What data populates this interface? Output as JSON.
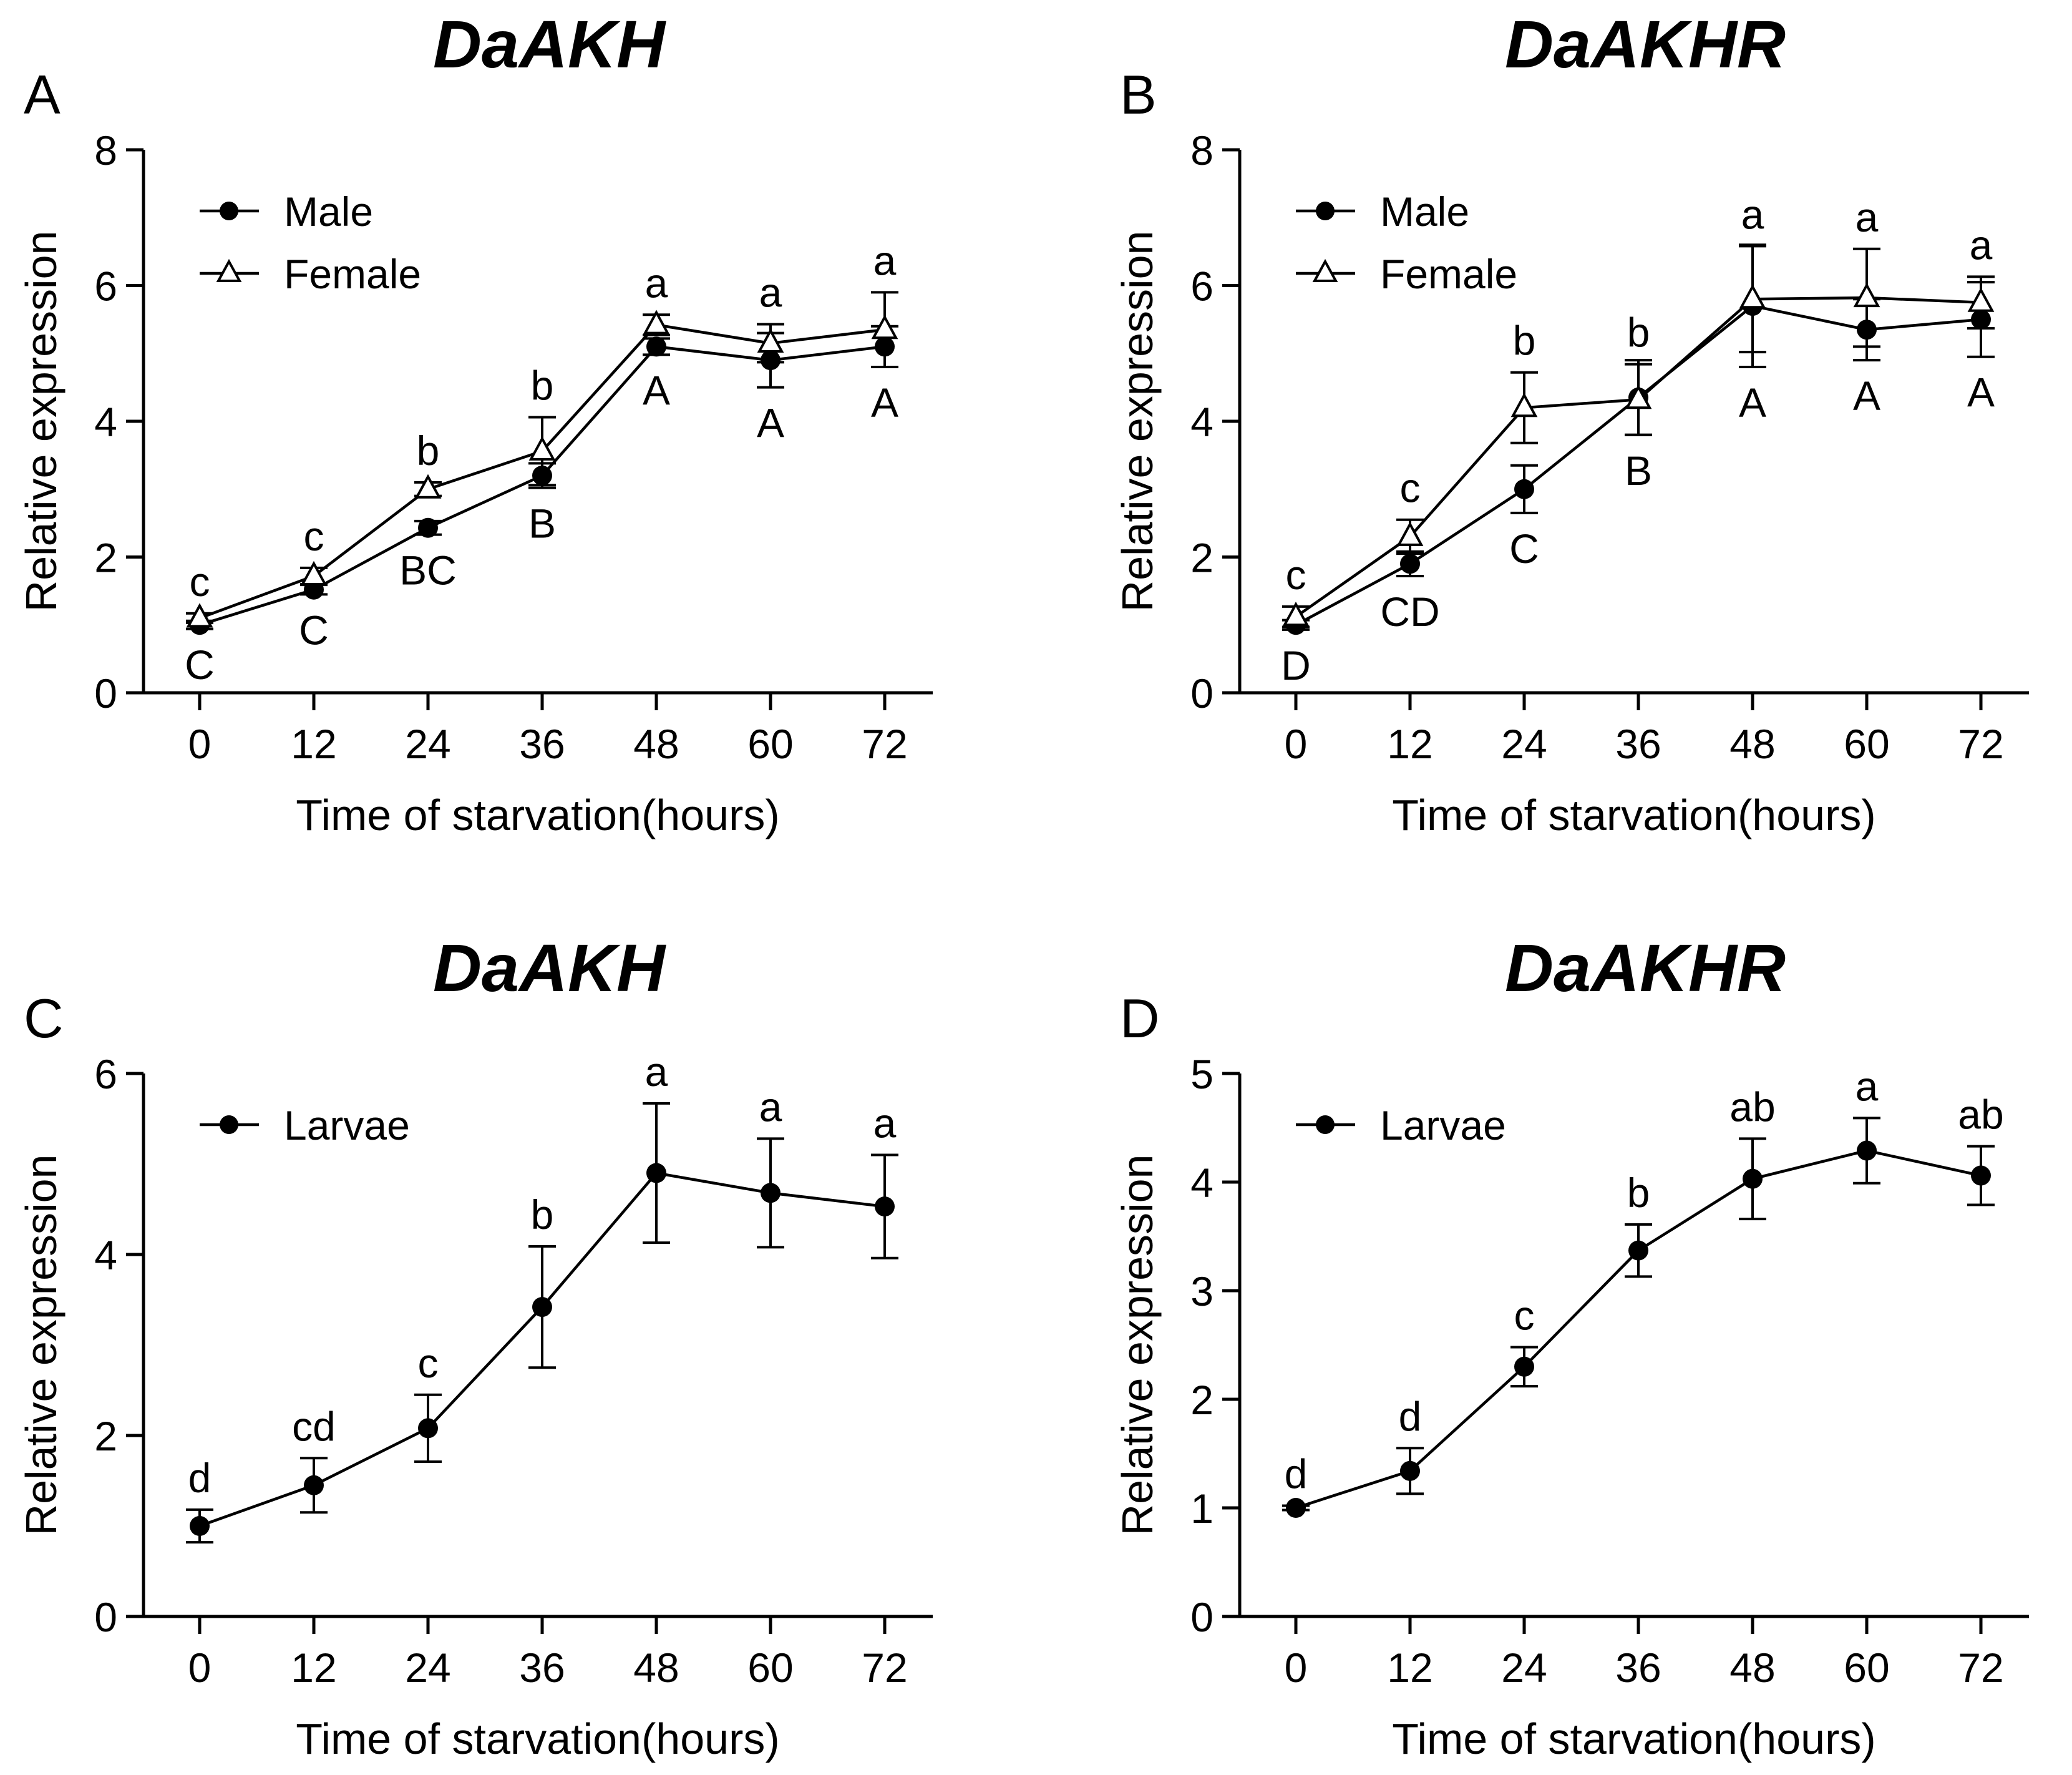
{
  "chart_data": [
    {
      "panel": "A",
      "title": "DaAKH",
      "type": "line",
      "xlabel": "Time of starvation(hours)",
      "ylabel": "Relative expression",
      "x": [
        0,
        12,
        24,
        36,
        48,
        60,
        72
      ],
      "xticks": [
        "0",
        "12",
        "24",
        "36",
        "48",
        "60",
        "72"
      ],
      "ylim": [
        0,
        8
      ],
      "yticks": [
        0,
        2,
        4,
        6,
        8
      ],
      "grid": false,
      "legend_position": "top-left",
      "series": [
        {
          "name": "Male",
          "marker": "filled-circle",
          "values": [
            1.0,
            1.52,
            2.43,
            3.2,
            5.1,
            4.9,
            5.1
          ],
          "errors": [
            0.06,
            0.07,
            0.1,
            0.18,
            0.12,
            0.4,
            0.3
          ],
          "letters": [
            "C",
            "C",
            "BC",
            "B",
            "A",
            "A",
            "A"
          ],
          "letter_position": "below"
        },
        {
          "name": "Female",
          "marker": "open-triangle",
          "values": [
            1.1,
            1.72,
            3.0,
            3.56,
            5.42,
            5.15,
            5.35
          ],
          "errors": [
            0.07,
            0.12,
            0.1,
            0.5,
            0.15,
            0.28,
            0.55
          ],
          "letters": [
            "c",
            "c",
            "b",
            "b",
            "a",
            "a",
            "a"
          ],
          "letter_position": "above"
        }
      ]
    },
    {
      "panel": "B",
      "title": "DaAKHR",
      "type": "line",
      "xlabel": "Time of starvation(hours)",
      "ylabel": "Relative expression",
      "x": [
        0,
        12,
        24,
        36,
        48,
        60,
        72
      ],
      "xticks": [
        "0",
        "12",
        "24",
        "36",
        "48",
        "60",
        "72"
      ],
      "ylim": [
        0,
        8
      ],
      "yticks": [
        0,
        2,
        4,
        6,
        8
      ],
      "grid": false,
      "legend_position": "top-left",
      "series": [
        {
          "name": "Male",
          "marker": "filled-circle",
          "values": [
            1.0,
            1.9,
            3.0,
            4.35,
            5.7,
            5.35,
            5.5
          ],
          "errors": [
            0.07,
            0.18,
            0.35,
            0.55,
            0.9,
            0.45,
            0.55
          ],
          "letters": [
            "D",
            "CD",
            "C",
            "B",
            "A",
            "A",
            "A"
          ],
          "letter_position": "below"
        },
        {
          "name": "Female",
          "marker": "open-triangle",
          "values": [
            1.12,
            2.3,
            4.2,
            4.32,
            5.8,
            5.82,
            5.75
          ],
          "errors": [
            0.15,
            0.25,
            0.52,
            0.52,
            0.78,
            0.72,
            0.38
          ],
          "letters": [
            "c",
            "c",
            "b",
            "b",
            "a",
            "a",
            "a"
          ],
          "letter_position": "above"
        }
      ]
    },
    {
      "panel": "C",
      "title": "DaAKH",
      "type": "line",
      "xlabel": "Time of starvation(hours)",
      "ylabel": "Relative expression",
      "x": [
        0,
        12,
        24,
        36,
        48,
        60,
        72
      ],
      "xticks": [
        "0",
        "12",
        "24",
        "36",
        "48",
        "60",
        "72"
      ],
      "ylim": [
        0,
        6
      ],
      "yticks": [
        0,
        2,
        4,
        6
      ],
      "grid": false,
      "legend_position": "top-left",
      "series": [
        {
          "name": "Larvae",
          "marker": "filled-circle",
          "values": [
            1.0,
            1.45,
            2.08,
            3.42,
            4.9,
            4.68,
            4.53
          ],
          "errors": [
            0.18,
            0.3,
            0.37,
            0.67,
            0.77,
            0.6,
            0.57
          ],
          "letters": [
            "d",
            "cd",
            "c",
            "b",
            "a",
            "a",
            "a"
          ],
          "letter_position": "above"
        }
      ]
    },
    {
      "panel": "D",
      "title": "DaAKHR",
      "type": "line",
      "xlabel": "Time of starvation(hours)",
      "ylabel": "Relative expression",
      "x": [
        0,
        12,
        24,
        36,
        48,
        60,
        72
      ],
      "xticks": [
        "0",
        "12",
        "24",
        "36",
        "48",
        "60",
        "72"
      ],
      "ylim": [
        0,
        5
      ],
      "yticks": [
        0,
        1,
        2,
        3,
        4,
        5
      ],
      "grid": false,
      "legend_position": "top-left",
      "series": [
        {
          "name": "Larvae",
          "marker": "filled-circle",
          "values": [
            1.0,
            1.34,
            2.3,
            3.37,
            4.03,
            4.29,
            4.06
          ],
          "errors": [
            0.02,
            0.21,
            0.18,
            0.24,
            0.37,
            0.3,
            0.27
          ],
          "letters": [
            "d",
            "d",
            "c",
            "b",
            "ab",
            "a",
            "ab"
          ],
          "letter_position": "above"
        }
      ]
    }
  ]
}
